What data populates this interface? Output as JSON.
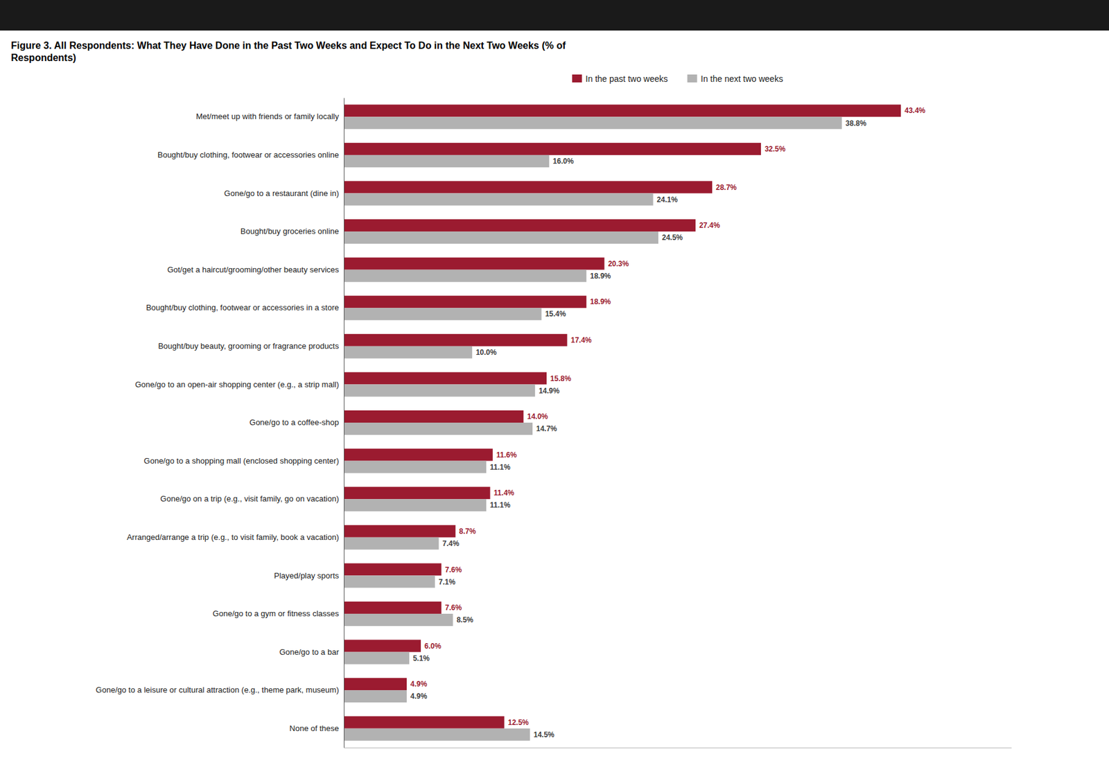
{
  "chart_data": {
    "type": "bar",
    "orientation": "horizontal",
    "title": "Figure 3. All Respondents: What They Have Done in the Past Two Weeks and Expect To Do in the Next Two Weeks (% of\nRespondents)",
    "categories": [
      "Met/meet up with friends or family locally",
      "Bought/buy clothing, footwear or accessories online",
      "Gone/go to a restaurant (dine in)",
      "Bought/buy groceries online",
      "Got/get a haircut/grooming/other beauty services",
      "Bought/buy clothing, footwear or accessories in a store",
      "Bought/buy beauty, grooming or fragrance products",
      "Gone/go to an open-air shopping center (e.g., a strip mall)",
      "Gone/go to a coffee-shop",
      "Gone/go to a shopping mall (enclosed shopping center)",
      "Gone/go on a trip (e.g., visit family, go on vacation)",
      "Arranged/arrange a trip (e.g., to visit family, book a vacation)",
      "Played/play sports",
      "Gone/go to a gym or fitness classes",
      "Gone/go to a bar",
      "Gone/go to a leisure or cultural attraction (e.g., theme park, museum)",
      "None of these"
    ],
    "series": [
      {
        "name": "In the past two weeks",
        "color": "#9B1B30",
        "values": [
          43.4,
          32.5,
          28.7,
          27.4,
          20.3,
          18.9,
          17.4,
          15.8,
          14.0,
          11.6,
          11.4,
          8.7,
          7.6,
          7.6,
          6.0,
          4.9,
          12.5
        ],
        "value_labels": [
          "43.4%",
          "32.5%",
          "28.7%",
          "27.4%",
          "20.3%",
          "18.9%",
          "17.4%",
          "15.8%",
          "14.0%",
          "11.6%",
          "11.4%",
          "8.7%",
          "7.6%",
          "7.6%",
          "6.0%",
          "4.9%",
          "12.5%"
        ]
      },
      {
        "name": "In the next two weeks",
        "color": "#B2B2B2",
        "values": [
          38.8,
          16.0,
          24.1,
          24.5,
          18.9,
          15.4,
          10.0,
          14.9,
          14.7,
          11.1,
          11.1,
          7.4,
          7.1,
          8.5,
          5.1,
          4.9,
          14.5
        ],
        "value_labels": [
          "38.8%",
          "16.0%",
          "24.1%",
          "24.5%",
          "18.9%",
          "15.4%",
          "10.0%",
          "14.9%",
          "14.7%",
          "11.1%",
          "11.1%",
          "7.4%",
          "7.1%",
          "8.5%",
          "5.1%",
          "4.9%",
          "14.5%"
        ]
      }
    ],
    "xlim": [
      0,
      52
    ],
    "tick_labels": "y",
    "data_labels": true,
    "legend": "top",
    "grid": false
  }
}
